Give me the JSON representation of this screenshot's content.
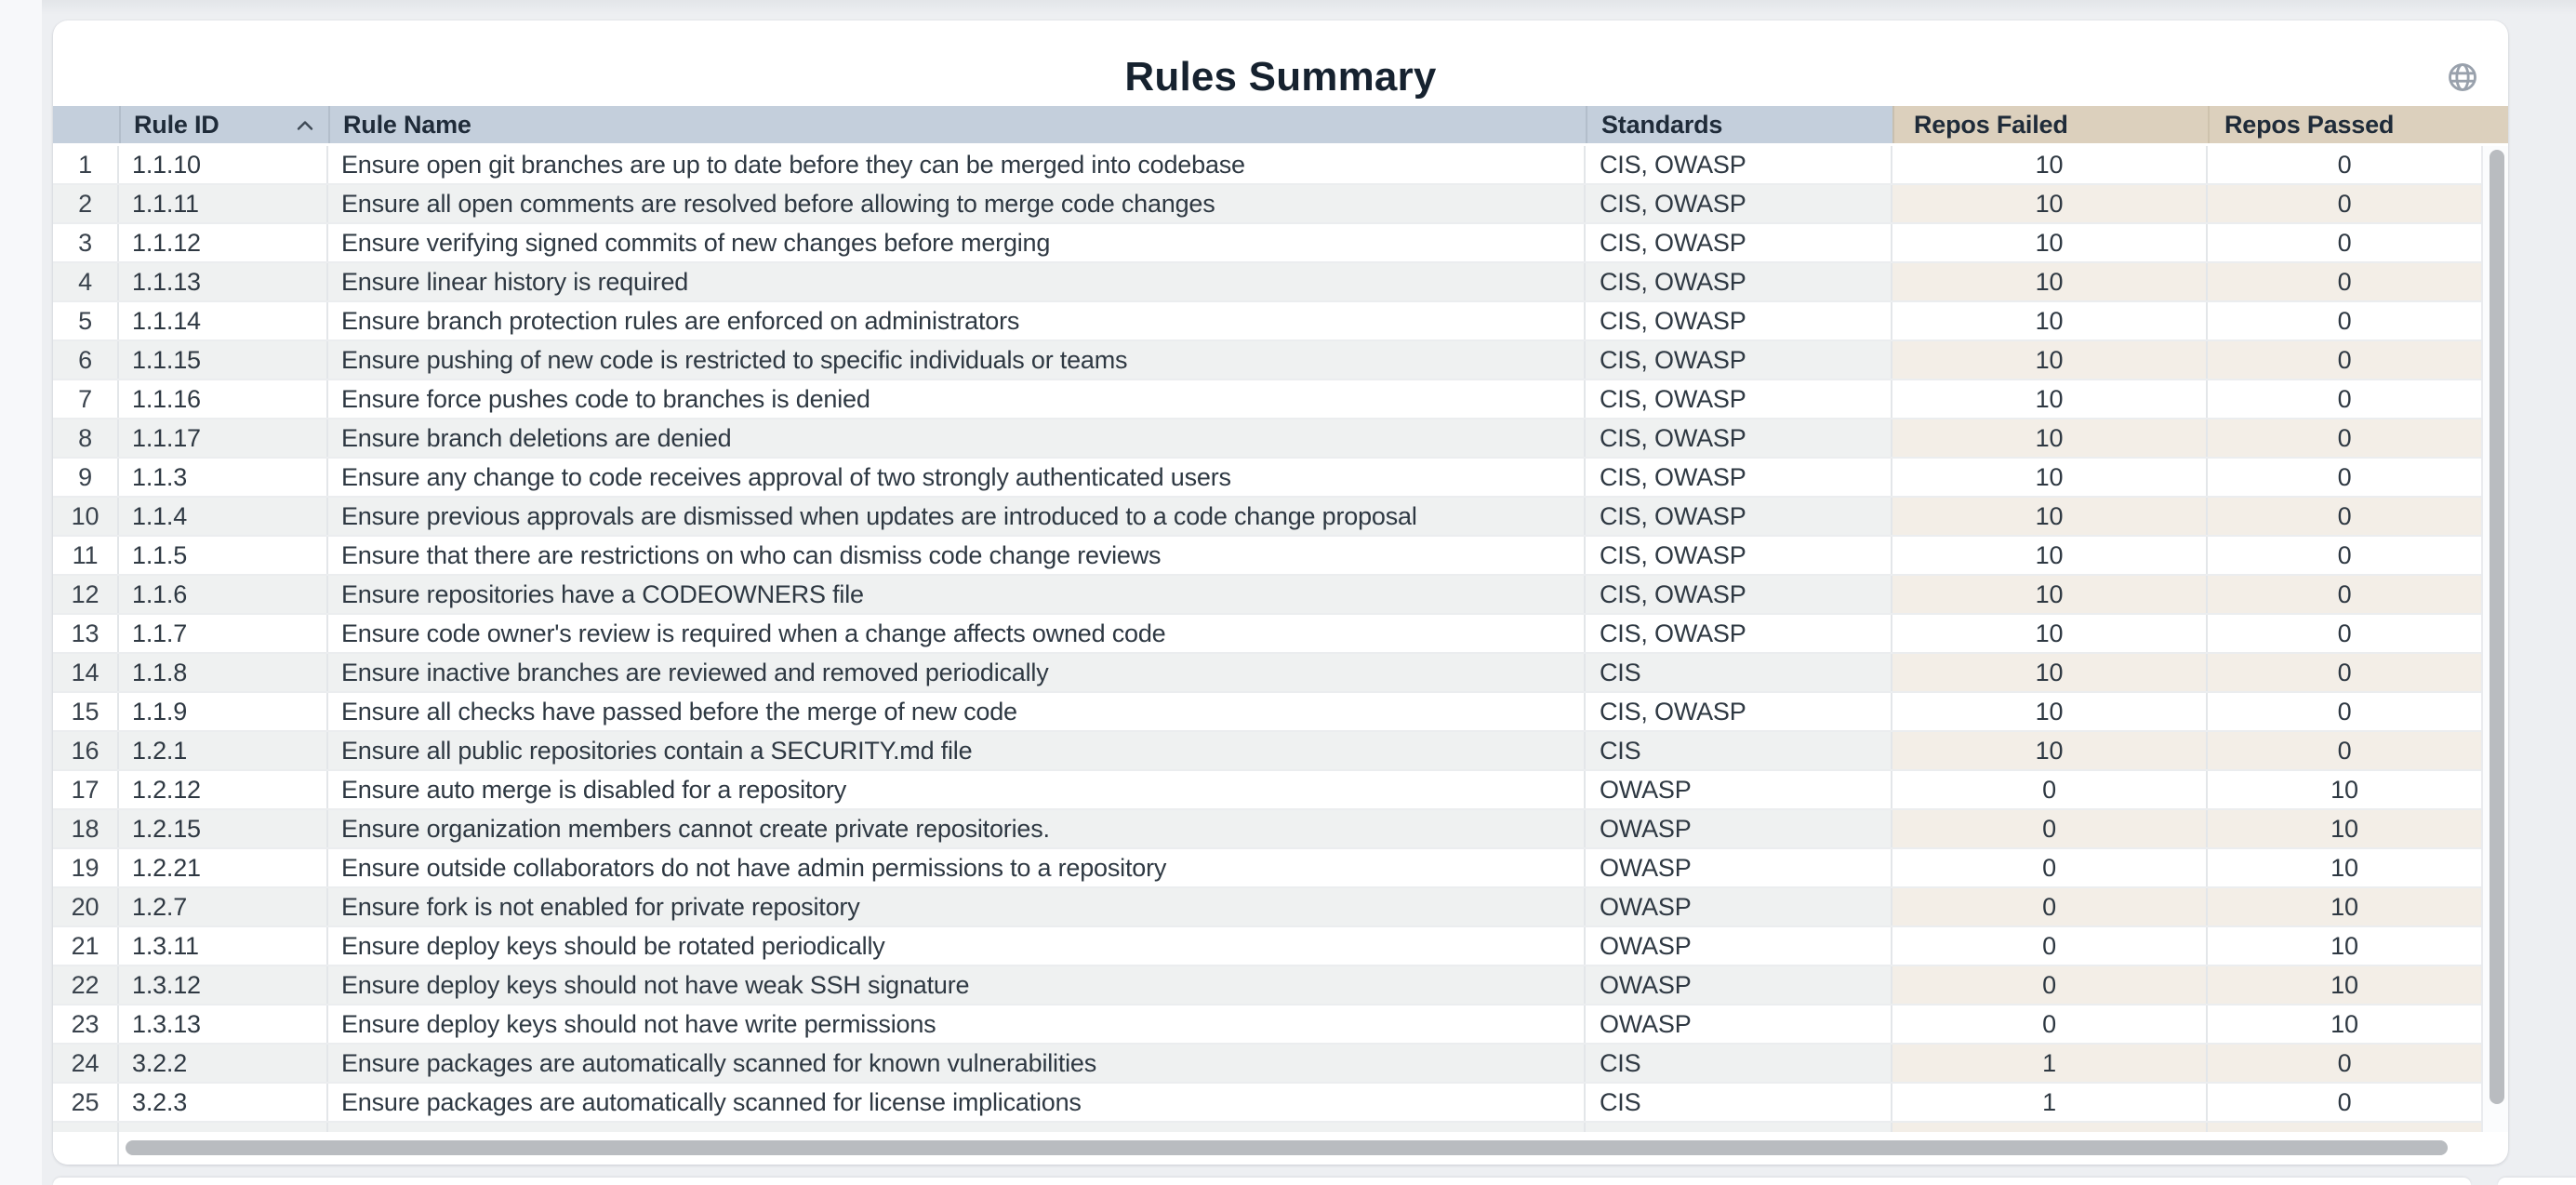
{
  "card": {
    "title": "Rules Summary"
  },
  "icons": {
    "globe": "globe-icon",
    "sort_ascending": "chevron-up-icon"
  },
  "table": {
    "columns": [
      {
        "key": "num",
        "label": ""
      },
      {
        "key": "rule_id",
        "label": "Rule ID",
        "sorted": "ascending"
      },
      {
        "key": "rule_name",
        "label": "Rule Name"
      },
      {
        "key": "standards",
        "label": "Standards"
      },
      {
        "key": "repos_failed",
        "label": "Repos Failed"
      },
      {
        "key": "repos_passed",
        "label": "Repos Passed"
      }
    ],
    "rows": [
      {
        "num": "1",
        "rule_id": "1.1.10",
        "rule_name": "Ensure open git branches are up to date before they can be merged into codebase",
        "standards": "CIS, OWASP",
        "repos_failed": "10",
        "repos_passed": "0"
      },
      {
        "num": "2",
        "rule_id": "1.1.11",
        "rule_name": "Ensure all open comments are resolved before allowing to merge code changes",
        "standards": "CIS, OWASP",
        "repos_failed": "10",
        "repos_passed": "0"
      },
      {
        "num": "3",
        "rule_id": "1.1.12",
        "rule_name": "Ensure verifying signed commits of new changes before merging",
        "standards": "CIS, OWASP",
        "repos_failed": "10",
        "repos_passed": "0"
      },
      {
        "num": "4",
        "rule_id": "1.1.13",
        "rule_name": "Ensure linear history is required",
        "standards": "CIS, OWASP",
        "repos_failed": "10",
        "repos_passed": "0"
      },
      {
        "num": "5",
        "rule_id": "1.1.14",
        "rule_name": "Ensure branch protection rules are enforced on administrators",
        "standards": "CIS, OWASP",
        "repos_failed": "10",
        "repos_passed": "0"
      },
      {
        "num": "6",
        "rule_id": "1.1.15",
        "rule_name": "Ensure pushing of new code is restricted to specific individuals or teams",
        "standards": "CIS, OWASP",
        "repos_failed": "10",
        "repos_passed": "0"
      },
      {
        "num": "7",
        "rule_id": "1.1.16",
        "rule_name": "Ensure force pushes code to branches is denied",
        "standards": "CIS, OWASP",
        "repos_failed": "10",
        "repos_passed": "0"
      },
      {
        "num": "8",
        "rule_id": "1.1.17",
        "rule_name": "Ensure branch deletions are denied",
        "standards": "CIS, OWASP",
        "repos_failed": "10",
        "repos_passed": "0"
      },
      {
        "num": "9",
        "rule_id": "1.1.3",
        "rule_name": "Ensure any change to code receives approval of two strongly authenticated users",
        "standards": "CIS, OWASP",
        "repos_failed": "10",
        "repos_passed": "0"
      },
      {
        "num": "10",
        "rule_id": "1.1.4",
        "rule_name": "Ensure previous approvals are dismissed when updates are introduced to a code change proposal",
        "standards": "CIS, OWASP",
        "repos_failed": "10",
        "repos_passed": "0"
      },
      {
        "num": "11",
        "rule_id": "1.1.5",
        "rule_name": "Ensure that there are restrictions on who can dismiss code change reviews",
        "standards": "CIS, OWASP",
        "repos_failed": "10",
        "repos_passed": "0"
      },
      {
        "num": "12",
        "rule_id": "1.1.6",
        "rule_name": "Ensure repositories have a CODEOWNERS file",
        "standards": "CIS, OWASP",
        "repos_failed": "10",
        "repos_passed": "0"
      },
      {
        "num": "13",
        "rule_id": "1.1.7",
        "rule_name": "Ensure code owner's review is required when a change affects owned code",
        "standards": "CIS, OWASP",
        "repos_failed": "10",
        "repos_passed": "0"
      },
      {
        "num": "14",
        "rule_id": "1.1.8",
        "rule_name": "Ensure inactive branches are reviewed and removed periodically",
        "standards": "CIS",
        "repos_failed": "10",
        "repos_passed": "0"
      },
      {
        "num": "15",
        "rule_id": "1.1.9",
        "rule_name": "Ensure all checks have passed before the merge of new code",
        "standards": "CIS, OWASP",
        "repos_failed": "10",
        "repos_passed": "0"
      },
      {
        "num": "16",
        "rule_id": "1.2.1",
        "rule_name": "Ensure all public repositories contain a SECURITY.md file",
        "standards": "CIS",
        "repos_failed": "10",
        "repos_passed": "0"
      },
      {
        "num": "17",
        "rule_id": "1.2.12",
        "rule_name": "Ensure auto merge is disabled for a repository",
        "standards": "OWASP",
        "repos_failed": "0",
        "repos_passed": "10"
      },
      {
        "num": "18",
        "rule_id": "1.2.15",
        "rule_name": "Ensure organization members cannot create private repositories.",
        "standards": "OWASP",
        "repos_failed": "0",
        "repos_passed": "10"
      },
      {
        "num": "19",
        "rule_id": "1.2.21",
        "rule_name": "Ensure outside collaborators do not have admin permissions to a repository",
        "standards": "OWASP",
        "repos_failed": "0",
        "repos_passed": "10"
      },
      {
        "num": "20",
        "rule_id": "1.2.7",
        "rule_name": "Ensure fork is not enabled for private repository",
        "standards": "OWASP",
        "repos_failed": "0",
        "repos_passed": "10"
      },
      {
        "num": "21",
        "rule_id": "1.3.11",
        "rule_name": "Ensure deploy keys should be rotated periodically",
        "standards": "OWASP",
        "repos_failed": "0",
        "repos_passed": "10"
      },
      {
        "num": "22",
        "rule_id": "1.3.12",
        "rule_name": "Ensure deploy keys should not have weak SSH signature",
        "standards": "OWASP",
        "repos_failed": "0",
        "repos_passed": "10"
      },
      {
        "num": "23",
        "rule_id": "1.3.13",
        "rule_name": "Ensure deploy keys should not have write permissions",
        "standards": "OWASP",
        "repos_failed": "0",
        "repos_passed": "10"
      },
      {
        "num": "24",
        "rule_id": "3.2.2",
        "rule_name": "Ensure packages are automatically scanned for known vulnerabilities",
        "standards": "CIS",
        "repos_failed": "1",
        "repos_passed": "0"
      },
      {
        "num": "25",
        "rule_id": "3.2.3",
        "rule_name": "Ensure packages are automatically scanned for license implications",
        "standards": "CIS",
        "repos_failed": "1",
        "repos_passed": "0"
      }
    ]
  },
  "colors": {
    "header_blue": "#c4cfdc",
    "header_tan": "#dcd0bd",
    "stripe_gray": "#eff1f1",
    "stripe_tan": "#f3eee7",
    "title_text": "#16222f",
    "scrollbar_thumb": "#b9bcc0",
    "page_background": "#edeff2"
  }
}
